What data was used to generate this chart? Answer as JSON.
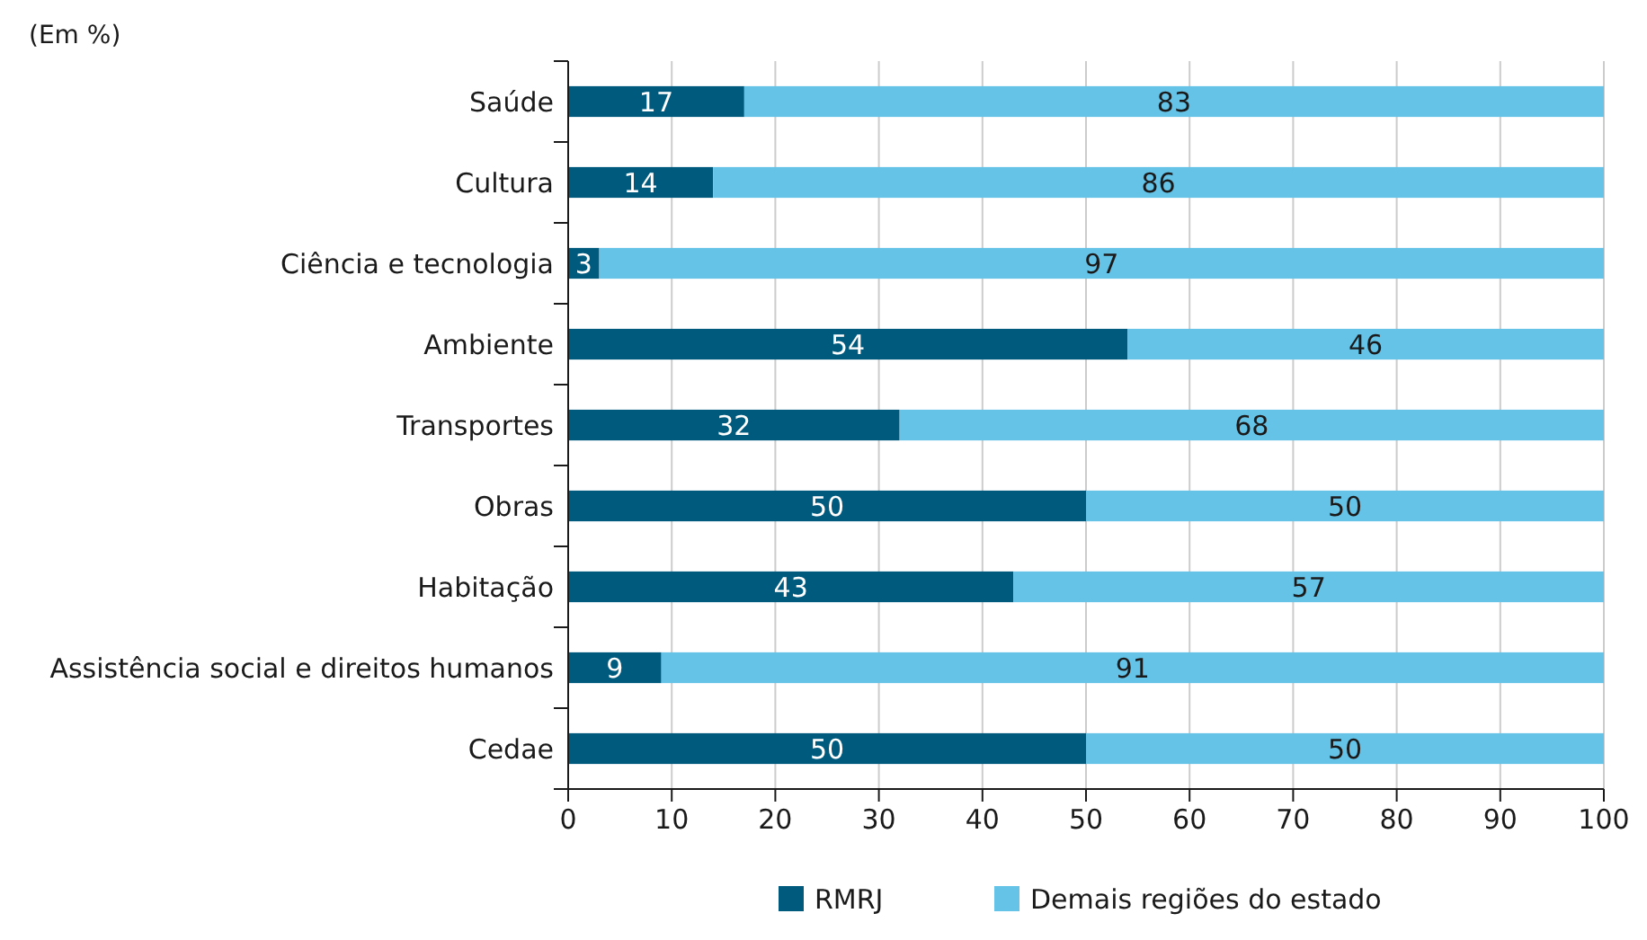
{
  "chart_data": {
    "type": "bar",
    "orientation": "horizontal",
    "stacked": true,
    "subtitle": "(Em %)",
    "categories": [
      "Saúde",
      "Cultura",
      "Ciência e tecnologia",
      "Ambiente",
      "Transportes",
      "Obras",
      "Habitação",
      "Assistência social e direitos humanos",
      "Cedae"
    ],
    "series": [
      {
        "name": "RMRJ",
        "color": "#005a7d",
        "values": [
          17,
          14,
          3,
          54,
          32,
          50,
          43,
          9,
          50
        ]
      },
      {
        "name": "Demais regiões do estado",
        "color": "#66c3e8",
        "values": [
          83,
          86,
          97,
          46,
          68,
          50,
          57,
          91,
          50
        ]
      }
    ],
    "xlim": [
      0,
      100
    ],
    "xticks": [
      0,
      10,
      20,
      30,
      40,
      50,
      60,
      70,
      80,
      90,
      100
    ],
    "grid": "x",
    "data_labels": true,
    "legend": "bottom"
  }
}
